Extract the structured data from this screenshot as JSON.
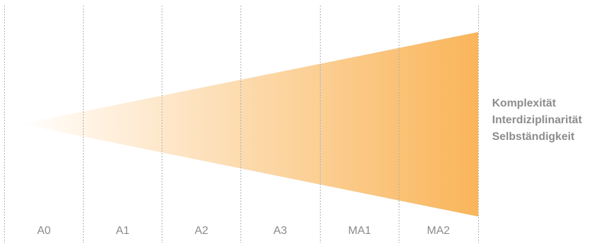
{
  "stages": [
    {
      "label": "A0"
    },
    {
      "label": "A1"
    },
    {
      "label": "A2"
    },
    {
      "label": "A3"
    },
    {
      "label": "MA1"
    },
    {
      "label": "MA2"
    }
  ],
  "dimensions": {
    "line1": "Komplexität",
    "line2": "Interdiziplinarität",
    "line3": "Selbständigkeit"
  },
  "colors": {
    "gradient_start": "#ffffff",
    "gradient_end": "#f9b55a",
    "divider": "#b0b0b0",
    "text": "#8a8a8a"
  }
}
